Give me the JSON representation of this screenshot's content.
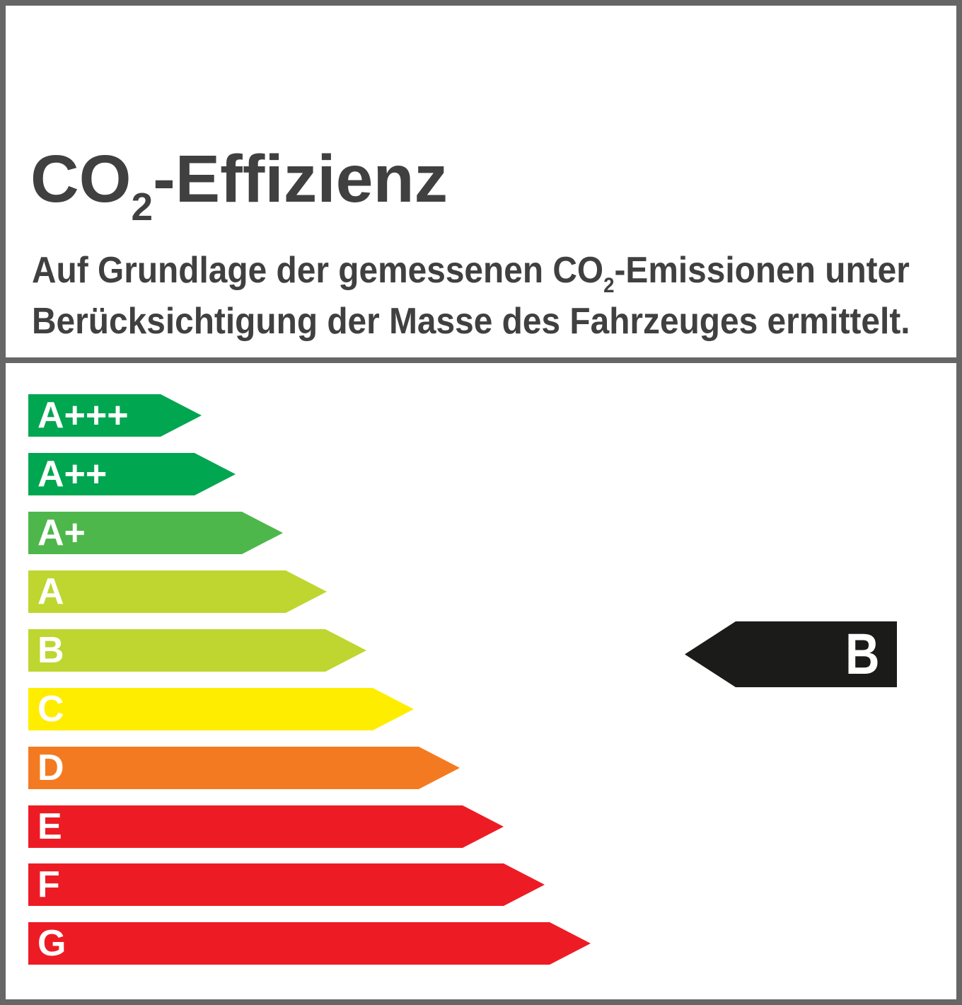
{
  "header": {
    "title": {
      "pre": "CO",
      "sub": "2",
      "post": "-Effizienz"
    },
    "subtitle": {
      "line1_pre": "Auf Grundlage der gemessenen CO",
      "line1_sub": "2",
      "line1_post": "-Emissionen unter",
      "line2": "Berücksichtigung der Masse des Fahrzeuges ermittelt."
    }
  },
  "chart_data": {
    "type": "bar",
    "title": "CO2-Effizienz",
    "orientation": "horizontal",
    "categories": [
      "A+++",
      "A++",
      "A+",
      "A",
      "B",
      "C",
      "D",
      "E",
      "F",
      "G"
    ],
    "values": [
      245,
      293,
      360,
      422,
      478,
      545,
      610,
      672,
      730,
      795
    ],
    "value_unit": "arrow length in px",
    "colors": [
      "#00a650",
      "#00a650",
      "#4eb74b",
      "#bed62f",
      "#bed62f",
      "#ffed00",
      "#f47a21",
      "#ed1c24",
      "#ed1c24",
      "#ed1c24"
    ],
    "rating": "B",
    "rating_aligned_to": "B",
    "rating_color": "#1b1b19",
    "grid": false,
    "legend_position": "none"
  },
  "colors": {
    "border": "#666666",
    "heading_text": "#404040",
    "bar_label_text": "#ffffff",
    "rating_letter_text": "#ffffff",
    "background": "#ffffff"
  }
}
